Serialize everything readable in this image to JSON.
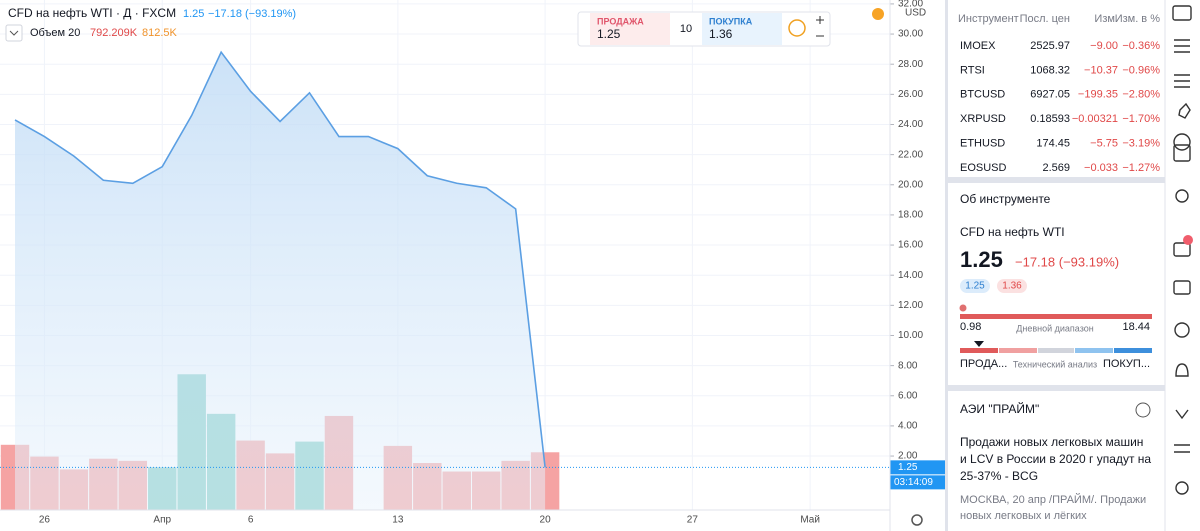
{
  "header": {
    "symbol": "CFD на нефть WTI · Д · FXCM",
    "price": "1.25",
    "change": "−17.18 (−93.19%)",
    "volume_name": "Объем 20",
    "volume_last": "792.209K",
    "volume_ma": "812.5K",
    "currency": "USD"
  },
  "trade": {
    "sell_label": "ПРОДАЖА",
    "sell_price": "1.25",
    "quantity": "10",
    "buy_label": "ПОКУПКА",
    "buy_price": "1.36"
  },
  "chart_data": {
    "type": "area",
    "categories": [
      null,
      "26",
      null,
      null,
      null,
      "Апр",
      null,
      null,
      "6",
      null,
      null,
      null,
      null,
      "13",
      null,
      null,
      null,
      null,
      "20",
      null,
      null,
      null,
      null,
      "27",
      null,
      null,
      null,
      "Май"
    ],
    "series": [
      {
        "name": "CFD на нефть WTI",
        "color": "#5b9fe3",
        "values": [
          24.3,
          23.2,
          21.9,
          20.3,
          20.1,
          21.2,
          24.6,
          28.8,
          26.2,
          24.2,
          26.1,
          23.2,
          23.2,
          22.4,
          20.6,
          20.1,
          19.8,
          18.4,
          1.25,
          null,
          null,
          null,
          null,
          null,
          null,
          null,
          null,
          null
        ]
      },
      {
        "name": "Объем",
        "values": [
          895,
          733,
          557,
          704,
          675,
          587,
          1863,
          1320,
          953,
          777,
          939,
          1291,
          null,
          880,
          645,
          528,
          528,
          675,
          792.209,
          null,
          null,
          null,
          null,
          null,
          null,
          null,
          null,
          null
        ],
        "colors": [
          "#f5a3a3",
          "#f5a3a3",
          "#f5a3a3",
          "#f5a3a3",
          "#f5a3a3",
          "#80cdc5",
          "#80cdc5",
          "#80cdc5",
          "#f5a3a3",
          "#f5a3a3",
          "#80cdc5",
          "#f5a3a3",
          null,
          "#f5a3a3",
          "#f5a3a3",
          "#f5a3a3",
          "#f5a3a3",
          "#f5a3a3",
          "#f5a3a3",
          null,
          null,
          null,
          null,
          null,
          null,
          null,
          null,
          null
        ]
      }
    ],
    "ylim": [
      -1.58,
      32.26
    ],
    "volume_ylim": [
      0,
      7000
    ],
    "yticks": [
      {
        "value": 2,
        "label": "2.00"
      },
      {
        "value": 4,
        "label": "4.00"
      },
      {
        "value": 6,
        "label": "6.00"
      },
      {
        "value": 8,
        "label": "8.00"
      },
      {
        "value": 10,
        "label": "10.00"
      },
      {
        "value": 12,
        "label": "12.00"
      },
      {
        "value": 14,
        "label": "14.00"
      },
      {
        "value": 16,
        "label": "16.00"
      },
      {
        "value": 18,
        "label": "18.00"
      },
      {
        "value": 20,
        "label": "20.00"
      },
      {
        "value": 22,
        "label": "22.00"
      },
      {
        "value": 24,
        "label": "24.00"
      },
      {
        "value": 26,
        "label": "26.00"
      },
      {
        "value": 28,
        "label": "28.00"
      },
      {
        "value": 30,
        "label": "30.00"
      },
      {
        "value": 32,
        "label": "32.00"
      }
    ],
    "last_price": {
      "value": 1.25,
      "label": "1.25"
    },
    "countdown": "03:14:09",
    "grid": true
  },
  "watchlist": {
    "columns": [
      "Инструмент",
      "Посл. цен",
      "Изм.",
      "Изм. в %"
    ],
    "rows": [
      [
        "IMOEX",
        "2525.97",
        "−9.00",
        "−0.36%"
      ],
      [
        "RTSI",
        "1068.32",
        "−10.37",
        "−0.96%"
      ],
      [
        "BTCUSD",
        "6927.05",
        "−199.35",
        "−2.80%"
      ],
      [
        "XRPUSD",
        "0.18593",
        "−0.00321",
        "−1.70%"
      ],
      [
        "ETHUSD",
        "174.45",
        "−5.75",
        "−3.19%"
      ],
      [
        "EOSUSD",
        "2.569",
        "−0.033",
        "−1.27%"
      ]
    ]
  },
  "details": {
    "title": "Об инструменте",
    "name": "CFD на нефть WTI",
    "price": "1.25",
    "change": "−17.18 (−93.19%)",
    "bid": "1.25",
    "ask": "1.36",
    "low": "0.98",
    "range_label": "Дневной диапазон",
    "high": "18.44",
    "sell": "ПРОДА...",
    "analysis": "Технический анализ",
    "buy": "ПОКУП..."
  },
  "news": {
    "source": "АЭИ \"ПРАЙМ\"",
    "headline": [
      "Продажи новых легковых машин",
      "и LCV в России в 2020 г упадут на",
      "25-37% - BCG"
    ],
    "snippet": [
      "МОСКВА, 20 апр /ПРАЙМ/. Продажи",
      "новых легковых и лёгких"
    ]
  }
}
